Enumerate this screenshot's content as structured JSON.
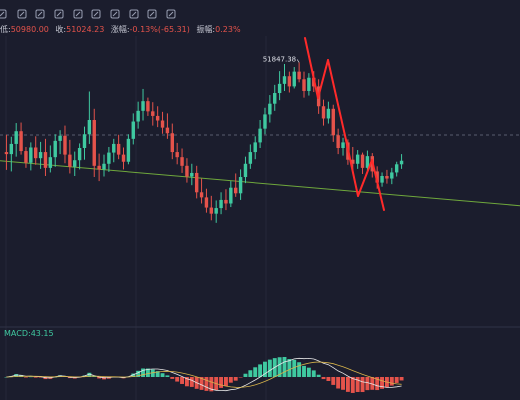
{
  "toolbar": {
    "icons": [
      "brush-icon",
      "line-tool-icon",
      "pencil-icon",
      "highlighter-icon",
      "trend-icon",
      "text-tool-icon",
      "lock-icon",
      "eye-icon",
      "measure-icon",
      "trash-icon"
    ]
  },
  "ohlc": {
    "low_label": "低:",
    "low_value": "50980.00",
    "close_label": "收:",
    "close_value": "51024.23",
    "change_label": "涨幅:",
    "change_value": "-0.13%(-65.31)",
    "amp_label": "振幅:",
    "amp_value": "0.23%"
  },
  "colors": {
    "background": "#1b1d2d",
    "up": "#3fc9a0",
    "down": "#e5534b",
    "trendline": "#6fa83c",
    "macd_dif": "#e8e8e8",
    "macd_dea": "#d8b44a"
  },
  "chart_data": [
    {
      "type": "candlestick",
      "max_label": "51847.38",
      "ref_level_label": "",
      "candles": [
        [
          50.12,
          50.46,
          49.77,
          50.08
        ],
        [
          50.08,
          50.42,
          49.74,
          50.28
        ],
        [
          50.28,
          50.69,
          50.03,
          50.53
        ],
        [
          50.53,
          50.7,
          50.07,
          50.14
        ],
        [
          50.14,
          50.22,
          49.81,
          49.91
        ],
        [
          49.91,
          50.31,
          49.76,
          50.21
        ],
        [
          50.21,
          50.43,
          49.87,
          50.0
        ],
        [
          50.0,
          50.32,
          49.79,
          50.12
        ],
        [
          50.12,
          50.38,
          49.65,
          49.81
        ],
        [
          49.81,
          50.25,
          49.72,
          50.02
        ],
        [
          50.02,
          50.47,
          49.83,
          50.34
        ],
        [
          50.34,
          50.55,
          50.08,
          50.44
        ],
        [
          50.44,
          50.64,
          49.9,
          50.07
        ],
        [
          50.07,
          50.36,
          49.7,
          49.83
        ],
        [
          49.83,
          50.13,
          49.65,
          49.96
        ],
        [
          49.96,
          50.29,
          49.78,
          50.2
        ],
        [
          50.2,
          50.62,
          49.97,
          50.47
        ],
        [
          50.47,
          51.31,
          50.28,
          50.75
        ],
        [
          50.75,
          50.97,
          49.63,
          49.85
        ],
        [
          49.85,
          50.09,
          49.55,
          49.78
        ],
        [
          49.78,
          50.07,
          49.64,
          49.89
        ],
        [
          49.89,
          50.22,
          49.73,
          50.11
        ],
        [
          50.11,
          50.38,
          49.92,
          50.28
        ],
        [
          50.28,
          50.46,
          49.98,
          50.07
        ],
        [
          50.07,
          50.21,
          49.78,
          49.93
        ],
        [
          49.93,
          50.47,
          49.88,
          50.38
        ],
        [
          50.38,
          50.88,
          50.27,
          50.72
        ],
        [
          50.72,
          51.11,
          50.58,
          50.93
        ],
        [
          50.93,
          51.36,
          50.74,
          51.12
        ],
        [
          51.12,
          51.19,
          50.83,
          50.92
        ],
        [
          50.92,
          51.1,
          50.64,
          50.83
        ],
        [
          50.83,
          51.02,
          50.61,
          50.74
        ],
        [
          50.74,
          50.91,
          50.48,
          50.6
        ],
        [
          50.6,
          50.88,
          50.38,
          50.49
        ],
        [
          50.49,
          50.68,
          49.98,
          50.12
        ],
        [
          50.12,
          50.3,
          49.88,
          50.02
        ],
        [
          50.02,
          50.19,
          49.71,
          49.85
        ],
        [
          49.85,
          50.0,
          49.52,
          49.64
        ],
        [
          49.64,
          49.89,
          49.47,
          49.71
        ],
        [
          49.71,
          49.85,
          49.21,
          49.33
        ],
        [
          49.33,
          49.6,
          49.11,
          49.23
        ],
        [
          49.23,
          49.4,
          48.93,
          49.03
        ],
        [
          49.03,
          49.26,
          48.78,
          48.91
        ],
        [
          48.91,
          49.17,
          48.73,
          49.02
        ],
        [
          49.02,
          49.33,
          48.9,
          49.18
        ],
        [
          49.18,
          49.39,
          48.98,
          49.11
        ],
        [
          49.11,
          49.55,
          49.04,
          49.42
        ],
        [
          49.42,
          49.7,
          49.24,
          49.31
        ],
        [
          49.31,
          49.78,
          49.18,
          49.63
        ],
        [
          49.63,
          50.03,
          49.51,
          49.89
        ],
        [
          49.89,
          50.27,
          49.79,
          50.12
        ],
        [
          50.12,
          50.43,
          49.98,
          50.31
        ],
        [
          50.31,
          50.75,
          50.2,
          50.58
        ],
        [
          50.58,
          50.99,
          50.47,
          50.86
        ],
        [
          50.86,
          51.24,
          50.7,
          51.07
        ],
        [
          51.07,
          51.44,
          50.93,
          51.28
        ],
        [
          51.28,
          51.71,
          51.14,
          51.46
        ],
        [
          51.46,
          51.85,
          51.32,
          51.61
        ],
        [
          51.61,
          51.7,
          51.29,
          51.41
        ],
        [
          51.41,
          51.79,
          51.37,
          51.7
        ],
        [
          51.7,
          51.88,
          51.49,
          51.55
        ],
        [
          51.55,
          51.7,
          51.19,
          51.32
        ],
        [
          51.32,
          51.67,
          51.23,
          51.58
        ],
        [
          51.58,
          51.71,
          51.3,
          51.41
        ],
        [
          51.41,
          51.55,
          50.87,
          51.02
        ],
        [
          51.02,
          51.15,
          50.64,
          50.78
        ],
        [
          50.78,
          51.11,
          50.68,
          50.97
        ],
        [
          50.97,
          51.05,
          50.32,
          50.45
        ],
        [
          50.45,
          50.58,
          50.08,
          50.2
        ],
        [
          50.2,
          50.4,
          50.05,
          50.31
        ],
        [
          50.31,
          50.37,
          49.87,
          49.97
        ],
        [
          49.97,
          50.22,
          49.75,
          49.89
        ],
        [
          49.89,
          50.16,
          49.79,
          50.07
        ],
        [
          50.07,
          50.11,
          49.69,
          49.81
        ],
        [
          49.81,
          50.15,
          49.75,
          50.04
        ],
        [
          50.04,
          50.1,
          49.62,
          49.74
        ],
        [
          49.74,
          49.84,
          49.4,
          49.52
        ],
        [
          49.52,
          49.72,
          49.44,
          49.65
        ],
        [
          49.65,
          49.77,
          49.5,
          49.6
        ],
        [
          49.6,
          49.81,
          49.49,
          49.72
        ],
        [
          49.72,
          49.93,
          49.64,
          49.88
        ],
        [
          49.88,
          50.08,
          49.79,
          49.95
        ]
      ]
    },
    {
      "type": "macd",
      "label": "MACD",
      "value": 43.15
    }
  ]
}
